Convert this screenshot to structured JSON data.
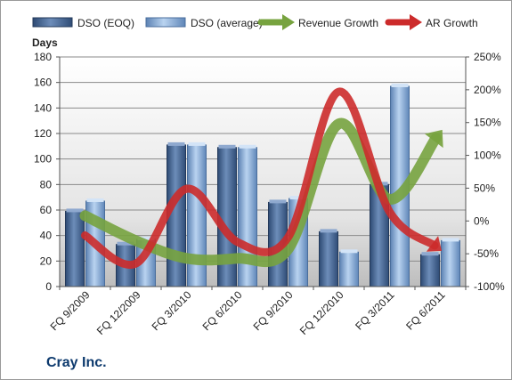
{
  "company": "Cray Inc.",
  "chart_data": {
    "type": "bar",
    "categories": [
      "FQ 9/2009",
      "FQ 12/2009",
      "FQ 3/2010",
      "FQ 6/2010",
      "FQ 9/2010",
      "FQ 12/2010",
      "FQ 3/2011",
      "FQ 6/2011"
    ],
    "ylabel": "Days",
    "ylim": [
      0,
      180
    ],
    "yticks": [
      "0",
      "20",
      "40",
      "60",
      "80",
      "100",
      "120",
      "140",
      "160",
      "180"
    ],
    "y2lim": [
      -100,
      250
    ],
    "y2ticks": [
      "-100%",
      "-50%",
      "0%",
      "50%",
      "100%",
      "150%",
      "200%",
      "250%"
    ],
    "grid": true,
    "legend_position": "top",
    "series": [
      {
        "name": "DSO (EOQ)",
        "kind": "bar",
        "axis": "left",
        "color": "#4f6f9f",
        "values": [
          59,
          33,
          111,
          109,
          66,
          43,
          80,
          25
        ]
      },
      {
        "name": "DSO (average)",
        "kind": "bar",
        "axis": "left",
        "color": "#8fb4de",
        "values": [
          67,
          37,
          111,
          109,
          69,
          27,
          157,
          36
        ]
      },
      {
        "name": "Revenue Growth",
        "kind": "line",
        "axis": "right",
        "color": "#77a33f",
        "values": [
          8,
          -30,
          -57,
          -57,
          -43,
          148,
          33,
          135
        ]
      },
      {
        "name": "AR Growth",
        "kind": "line",
        "axis": "right",
        "color": "#cc2b2b",
        "values": [
          -22,
          -65,
          49,
          -32,
          -25,
          197,
          14,
          -44
        ]
      }
    ]
  }
}
